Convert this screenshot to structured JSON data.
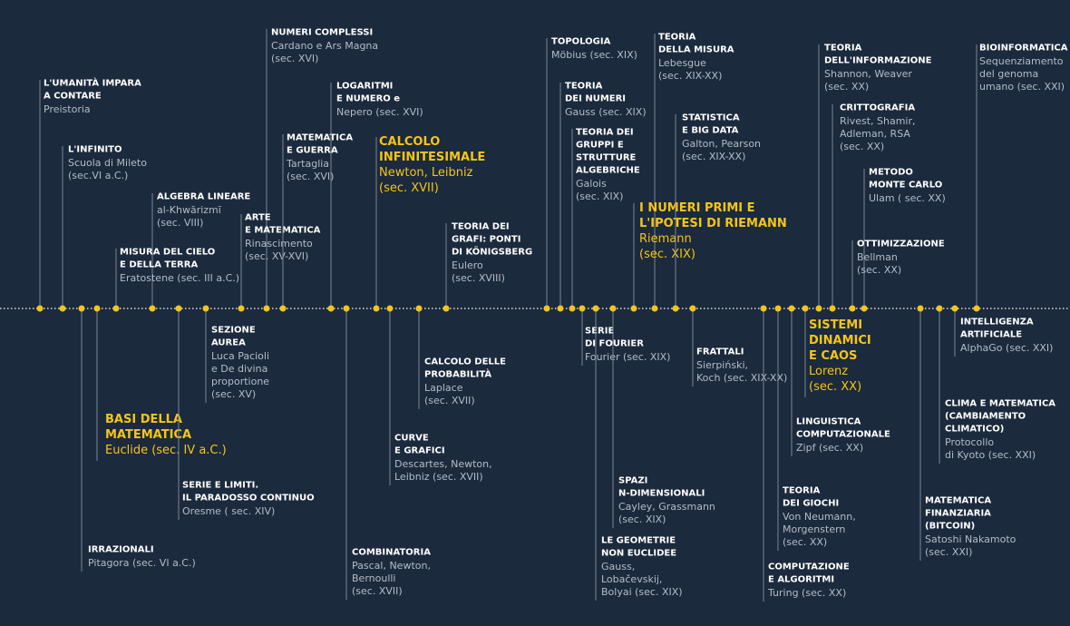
{
  "events": [
    {
      "title": [
        "L'UMANITÀ IMPARA",
        "A CONTARE"
      ],
      "detail": [
        "Preistoria"
      ]
    },
    {
      "title": [
        "L'INFINITO"
      ],
      "detail": [
        "Scuola di Mileto",
        "(sec.VI a.C.)"
      ]
    },
    {
      "title": [
        "ALGEBRA LINEARE"
      ],
      "detail": [
        "al-Khwārizmī",
        "(sec. VIII)"
      ]
    },
    {
      "title": [
        "MISURA DEL CIELO",
        "E DELLA TERRA"
      ],
      "detail": [
        "Eratostene (sec. III a.C.)"
      ]
    },
    {
      "title": [
        "NUMERI COMPLESSI"
      ],
      "detail": [
        "Cardano e Ars Magna",
        "(sec. XVI)"
      ]
    },
    {
      "title": [
        "ARTE",
        "E MATEMATICA"
      ],
      "detail": [
        "Rinascimento",
        "(sec. XV-XVI)"
      ]
    },
    {
      "title": [
        "MATEMATICA",
        "E GUERRA"
      ],
      "detail": [
        "Tartaglia",
        "(sec. XVI)"
      ]
    },
    {
      "title": [
        "LOGARITMI",
        "E NUMERO e"
      ],
      "detail": [
        "Nepero (sec. XVI)"
      ]
    },
    {
      "title": [
        "CALCOLO",
        "INFINITESIMALE"
      ],
      "detail": [
        "Newton, Leibniz",
        "(sec. XVII)"
      ]
    },
    {
      "title": [
        "TEORIA DEI",
        "GRAFI: PONTI",
        "DI KÖNIGSBERG"
      ],
      "detail": [
        "Eulero",
        "(sec. XVIII)"
      ]
    },
    {
      "title": [
        "TOPOLOGIA"
      ],
      "detail": [
        "Möbius (sec. XIX)"
      ]
    },
    {
      "title": [
        "TEORIA",
        "DEI NUMERI"
      ],
      "detail": [
        "Gauss (sec. XIX)"
      ]
    },
    {
      "title": [
        "TEORIA DEI",
        "GRUPPI E",
        "STRUTTURE",
        "ALGEBRICHE"
      ],
      "detail": [
        "Galois",
        "(sec. XIX)"
      ]
    },
    {
      "title": [
        "TEORIA",
        "DELLA MISURA"
      ],
      "detail": [
        "Lebesgue",
        "(sec. XIX-XX)"
      ]
    },
    {
      "title": [
        "I NUMERI PRIMI E",
        "L'IPOTESI DI RIEMANN"
      ],
      "detail": [
        "Riemann",
        "(sec. XIX)"
      ]
    },
    {
      "title": [
        "STATISTICA",
        "E BIG DATA"
      ],
      "detail": [
        "Galton, Pearson",
        "(sec. XIX-XX)"
      ]
    },
    {
      "title": [
        "TEORIA",
        "DELL'INFORMAZIONE"
      ],
      "detail": [
        "Shannon, Weaver",
        "(sec. XX)"
      ]
    },
    {
      "title": [
        "CRITTOGRAFIA"
      ],
      "detail": [
        "Rivest, Shamir,",
        "Adleman, RSA",
        "(sec. XX)"
      ]
    },
    {
      "title": [
        "METODO",
        "MONTE CARLO"
      ],
      "detail": [
        "Ulam ( sec. XX)"
      ]
    },
    {
      "title": [
        "OTTIMIZZAZIONE"
      ],
      "detail": [
        "Bellman",
        "(sec. XX)"
      ]
    },
    {
      "title": [
        "BIOINFORMATICA"
      ],
      "detail": [
        "Sequenziamento",
        "del genoma",
        "umano (sec. XXI)"
      ]
    },
    {
      "title": [
        "SEZIONE",
        "AUREA"
      ],
      "detail": [
        "Luca Pacioli",
        "e De divina",
        "proportione",
        " (sec. XV)"
      ]
    },
    {
      "title": [
        "BASI DELLA",
        "MATEMATICA"
      ],
      "detail": [
        "Euclide (sec. IV a.C.)"
      ]
    },
    {
      "title": [
        "SERIE E LIMITI.",
        "IL PARADOSSO CONTINUO"
      ],
      "detail": [
        "Oresme ( sec. XIV)"
      ]
    },
    {
      "title": [
        "IRRAZIONALI"
      ],
      "detail": [
        "Pitagora (sec. VI a.C.)"
      ]
    },
    {
      "title": [
        "COMBINATORIA"
      ],
      "detail": [
        "Pascal, Newton,",
        "Bernoulli",
        "(sec. XVII)"
      ]
    },
    {
      "title": [
        "CALCOLO DELLE",
        "PROBABILITÀ"
      ],
      "detail": [
        "Laplace",
        "(sec. XVII)"
      ]
    },
    {
      "title": [
        "CURVE",
        "E GRAFICI"
      ],
      "detail": [
        "Descartes, Newton,",
        "Leibniz (sec. XVII)"
      ]
    },
    {
      "title": [
        "SERIE",
        "DI FOURIER"
      ],
      "detail": [
        "Fourier (sec. XIX)"
      ]
    },
    {
      "title": [
        "SPAZI",
        "N-DIMENSIONALI"
      ],
      "detail": [
        "Cayley, Grassmann",
        "(sec. XIX)"
      ]
    },
    {
      "title": [
        "LE GEOMETRIE",
        "NON EUCLIDEE"
      ],
      "detail": [
        "Gauss,",
        "Lobačevskij,",
        "Bolyai (sec. XIX)"
      ]
    },
    {
      "title": [
        "FRATTALI"
      ],
      "detail": [
        "Sierpiński,",
        "Koch (sec. XIX-XX)"
      ]
    },
    {
      "title": [
        "SISTEMI",
        "DINAMICI",
        "E CAOS"
      ],
      "detail": [
        "Lorenz",
        "(sec. XX)"
      ]
    },
    {
      "title": [
        "LINGUISTICA",
        "COMPUTAZIONALE"
      ],
      "detail": [
        "Zipf (sec. XX)"
      ]
    },
    {
      "title": [
        "TEORIA",
        "DEI GIOCHI"
      ],
      "detail": [
        "Von Neumann,",
        "Morgenstern",
        "(sec. XX)"
      ]
    },
    {
      "title": [
        "COMPUTAZIONE",
        "E ALGORITMI"
      ],
      "detail": [
        "Turing (sec. XX)"
      ]
    },
    {
      "title": [
        "INTELLIGENZA",
        "ARTIFICIALE"
      ],
      "detail": [
        "AlphaGo (sec. XXI)"
      ]
    },
    {
      "title": [
        "CLIMA E MATEMATICA",
        "(CAMBIAMENTO",
        "CLIMATICO)"
      ],
      "detail": [
        "Protocollo",
        "di Kyoto (sec. XXI)"
      ]
    },
    {
      "title": [
        "MATEMATICA",
        "FINANZIARIA",
        "(BITCOIN)"
      ],
      "detail": [
        "Satoshi Nakamoto",
        "(sec. XXI)"
      ]
    }
  ]
}
